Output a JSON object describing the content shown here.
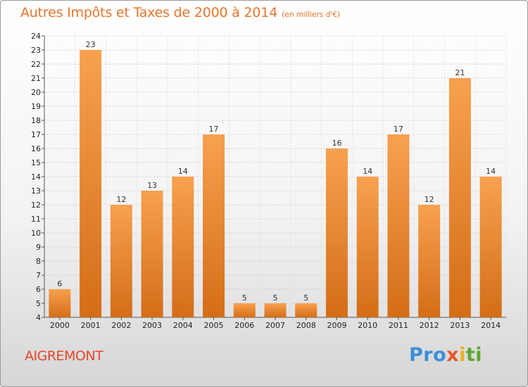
{
  "title": "Autres Impôts et Taxes de 2000 à 2014",
  "unit": "(en milliers d'€)",
  "place": "AIGREMONT",
  "logo": {
    "p1": "Pro",
    "p2": "x",
    "p3": "i",
    "p4": "ti"
  },
  "colors": {
    "bar_top": "#f7a14f",
    "bar_bottom": "#d46d17",
    "title": "#e8742a",
    "place": "#e8462a"
  },
  "chart_data": {
    "type": "bar",
    "categories": [
      "2000",
      "2001",
      "2002",
      "2003",
      "2004",
      "2005",
      "2006",
      "2007",
      "2008",
      "2009",
      "2010",
      "2011",
      "2012",
      "2013",
      "2014"
    ],
    "values": [
      6,
      23,
      12,
      13,
      14,
      17,
      5,
      5,
      5,
      16,
      14,
      17,
      12,
      21,
      14
    ],
    "title": "Autres Impôts et Taxes de 2000 à 2014",
    "xlabel": "",
    "ylabel": "",
    "ylim": [
      4,
      24
    ],
    "yticks": [
      4,
      5,
      6,
      7,
      8,
      9,
      10,
      11,
      12,
      13,
      14,
      15,
      16,
      17,
      18,
      19,
      20,
      21,
      22,
      23,
      24
    ],
    "grid": true
  }
}
